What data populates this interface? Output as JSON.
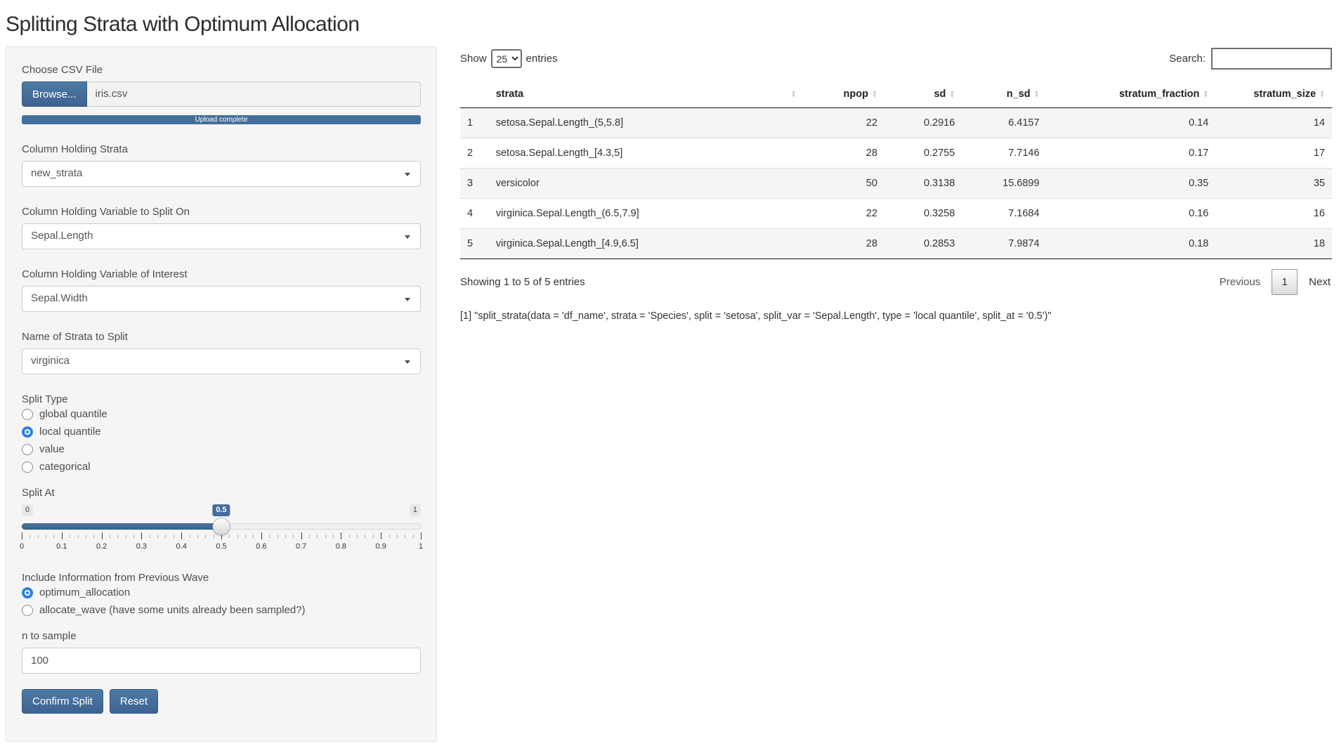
{
  "page": {
    "title": "Splitting Strata with Optimum Allocation"
  },
  "colors": {
    "accent": "#446e9b",
    "slider_bar": "#426b94",
    "radio_selected": "#2d7fe0",
    "well_bg": "#f5f5f5",
    "stripe": "#f5f5f5"
  },
  "sidebar": {
    "file_input": {
      "label": "Choose CSV File",
      "browse_label": "Browse...",
      "filename": "iris.csv",
      "progress_text": "Upload complete"
    },
    "strata_select": {
      "label": "Column Holding Strata",
      "value": "new_strata"
    },
    "split_var_select": {
      "label": "Column Holding Variable to Split On",
      "value": "Sepal.Length"
    },
    "interest_var_select": {
      "label": "Column Holding Variable of Interest",
      "value": "Sepal.Width"
    },
    "strata_to_split_select": {
      "label": "Name of Strata to Split",
      "value": "virginica"
    },
    "split_type": {
      "label": "Split Type",
      "options": [
        "global quantile",
        "local quantile",
        "value",
        "categorical"
      ],
      "selected": "local quantile"
    },
    "split_at": {
      "label": "Split At",
      "min": "0",
      "max": "1",
      "value": "0.5",
      "value_percent": 50,
      "tick_labels": [
        "0",
        "0.1",
        "0.2",
        "0.3",
        "0.4",
        "0.5",
        "0.6",
        "0.7",
        "0.8",
        "0.9",
        "1"
      ]
    },
    "previous_wave": {
      "label": "Include Information from Previous Wave",
      "options": [
        "optimum_allocation",
        "allocate_wave (have some units already been sampled?)"
      ],
      "selected": "optimum_allocation"
    },
    "n_to_sample": {
      "label": "n to sample",
      "value": "100"
    },
    "confirm_label": "Confirm Split",
    "reset_label": "Reset"
  },
  "table": {
    "show_label": "Show",
    "entries_label": "entries",
    "page_length": "25",
    "search_label": "Search:",
    "search_value": "",
    "columns": [
      "strata",
      "npop",
      "sd",
      "n_sd",
      "stratum_fraction",
      "stratum_size"
    ],
    "row_keys": [
      "index",
      "strata",
      "npop",
      "sd",
      "n_sd",
      "stratum_fraction",
      "stratum_size"
    ],
    "rows": [
      {
        "index": "1",
        "strata": "setosa.Sepal.Length_(5,5.8]",
        "npop": "22",
        "sd": "0.2916",
        "n_sd": "6.4157",
        "stratum_fraction": "0.14",
        "stratum_size": "14"
      },
      {
        "index": "2",
        "strata": "setosa.Sepal.Length_[4.3,5]",
        "npop": "28",
        "sd": "0.2755",
        "n_sd": "7.7146",
        "stratum_fraction": "0.17",
        "stratum_size": "17"
      },
      {
        "index": "3",
        "strata": "versicolor",
        "npop": "50",
        "sd": "0.3138",
        "n_sd": "15.6899",
        "stratum_fraction": "0.35",
        "stratum_size": "35"
      },
      {
        "index": "4",
        "strata": "virginica.Sepal.Length_(6.5,7.9]",
        "npop": "22",
        "sd": "0.3258",
        "n_sd": "7.1684",
        "stratum_fraction": "0.16",
        "stratum_size": "16"
      },
      {
        "index": "5",
        "strata": "virginica.Sepal.Length_[4.9,6.5]",
        "npop": "28",
        "sd": "0.2853",
        "n_sd": "7.9874",
        "stratum_fraction": "0.18",
        "stratum_size": "18"
      }
    ],
    "info": "Showing 1 to 5 of 5 entries",
    "pagination": {
      "previous": "Previous",
      "current": "1",
      "next": "Next"
    }
  },
  "output": {
    "text": "[1] \"split_strata(data = 'df_name', strata = 'Species', split = 'setosa', split_var = 'Sepal.Length', type = 'local quantile', split_at = '0.5')\""
  }
}
